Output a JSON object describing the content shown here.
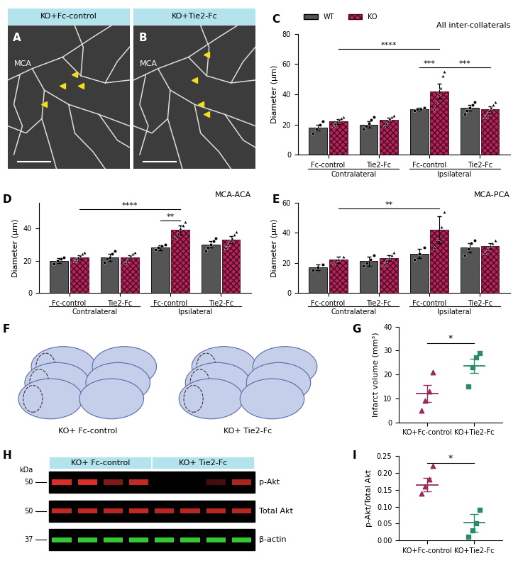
{
  "images": [
    {
      "panel": "A",
      "type": "micrograph",
      "header": "KO+Fc-control",
      "label": "MCA"
    },
    {
      "panel": "B",
      "type": "micrograph",
      "header": "KO+Tie2-Fc",
      "label": "MCA"
    },
    {
      "panel": "F",
      "type": "sections",
      "captions": [
        "KO+ Fc-control",
        "KO+ Tie2-Fc"
      ]
    },
    {
      "panel": "H",
      "type": "blot",
      "groups": [
        "KO+ Fc-control",
        "KO+ Tie2-Fc"
      ],
      "kda_title": "kDa",
      "rows": [
        {
          "label": "p-Akt",
          "kda": "50",
          "color": "#e8302a",
          "intensity": [
            0.95,
            0.95,
            0.55,
            0.85,
            0.0,
            0.0,
            0.3,
            0.75
          ]
        },
        {
          "label": "Total Akt",
          "kda": "50",
          "color": "#e8302a",
          "intensity": [
            0.85,
            0.85,
            0.8,
            0.85,
            0.8,
            0.8,
            0.8,
            0.8
          ]
        },
        {
          "label": "β-actin",
          "kda": "37",
          "color": "#3adf3a",
          "intensity": [
            0.9,
            0.9,
            0.9,
            0.9,
            0.9,
            0.9,
            0.9,
            0.9
          ]
        }
      ]
    }
  ],
  "chart_data": [
    {
      "panel": "C",
      "type": "bar",
      "title": "All inter-collaterals",
      "ylabel": "Diameter (μm)",
      "categories": [
        "Fc-control",
        "Tie2-Fc",
        "Fc-control",
        "Tie2-Fc"
      ],
      "groups": [
        {
          "label": "Contralateral",
          "categories": [
            0,
            1
          ]
        },
        {
          "label": "Ipsilateral",
          "categories": [
            2,
            3
          ]
        }
      ],
      "series": [
        {
          "name": "WT",
          "color": "#555555",
          "marker": "circle",
          "values": [
            18,
            20,
            30,
            31
          ],
          "errors": [
            2,
            2,
            1,
            2
          ],
          "points": [
            [
              14,
              17,
              20,
              22
            ],
            [
              17,
              19,
              21,
              23,
              25
            ],
            [
              29,
              30,
              30,
              31
            ],
            [
              27,
              29,
              31,
              33,
              35
            ]
          ]
        },
        {
          "name": "KO",
          "color": "#b5245a",
          "marker": "triangle",
          "values": [
            22,
            23,
            42,
            30
          ],
          "errors": [
            1.5,
            1.5,
            5,
            2
          ],
          "points": [
            [
              19,
              21,
              22,
              23,
              24,
              25
            ],
            [
              19,
              21,
              22,
              24,
              25,
              26
            ],
            [
              30,
              35,
              40,
              44,
              52,
              55
            ],
            [
              25,
              27,
              29,
              31,
              33,
              35
            ]
          ]
        }
      ],
      "ylim": [
        0,
        80
      ],
      "yticks": [
        0,
        20,
        40,
        60,
        80
      ],
      "legend": "upper left",
      "significance": [
        {
          "from": [
            0,
            "KO"
          ],
          "to": [
            2,
            "KO"
          ],
          "y": 70,
          "label": "****"
        },
        {
          "from": [
            2,
            "WT"
          ],
          "to": [
            2,
            "KO"
          ],
          "y": 58,
          "label": "***"
        },
        {
          "from": [
            2,
            "KO"
          ],
          "to": [
            3,
            "KO"
          ],
          "y": 58,
          "label": "***"
        }
      ]
    },
    {
      "panel": "D",
      "type": "bar",
      "title": "MCA-ACA",
      "ylabel": "Diameter (μm)",
      "categories": [
        "Fc-control",
        "Tie2-Fc",
        "Fc-control",
        "Tie2-Fc"
      ],
      "groups": [
        {
          "label": "Contralateral",
          "categories": [
            0,
            1
          ]
        },
        {
          "label": "Ipsilateral",
          "categories": [
            2,
            3
          ]
        }
      ],
      "series": [
        {
          "name": "WT",
          "color": "#555555",
          "marker": "circle",
          "values": [
            20,
            22,
            28,
            30
          ],
          "errors": [
            1.5,
            2,
            1.5,
            2
          ],
          "points": [
            [
              18,
              20,
              21,
              22
            ],
            [
              19,
              21,
              22,
              24,
              26
            ],
            [
              27,
              28,
              29,
              30
            ],
            [
              26,
              28,
              30,
              32,
              34
            ]
          ]
        },
        {
          "name": "KO",
          "color": "#b5245a",
          "marker": "triangle",
          "values": [
            22,
            22,
            39,
            33
          ],
          "errors": [
            1.5,
            1.5,
            3,
            2
          ],
          "points": [
            [
              20,
              21,
              22,
              23,
              24,
              25
            ],
            [
              19,
              20,
              22,
              23,
              24,
              25
            ],
            [
              34,
              37,
              40,
              42,
              44
            ],
            [
              28,
              30,
              32,
              34,
              36,
              38
            ]
          ]
        }
      ],
      "ylim": [
        0,
        56
      ],
      "yticks": [
        0,
        20,
        40
      ],
      "significance": [
        {
          "from": [
            0,
            "KO"
          ],
          "to": [
            2,
            "KO"
          ],
          "y": 52,
          "label": "****"
        },
        {
          "from": [
            2,
            "WT"
          ],
          "to": [
            2,
            "KO"
          ],
          "y": 45,
          "label": "**"
        }
      ]
    },
    {
      "panel": "E",
      "type": "bar",
      "title": "MCA-PCA",
      "ylabel": "Diameter (μm)",
      "categories": [
        "Fc-control",
        "Tie2-Fc",
        "Fc-control",
        "Tie2-Fc"
      ],
      "groups": [
        {
          "label": "Contralateral",
          "categories": [
            0,
            1
          ]
        },
        {
          "label": "Ipsilateral",
          "categories": [
            2,
            3
          ]
        }
      ],
      "series": [
        {
          "name": "WT",
          "color": "#555555",
          "marker": "circle",
          "values": [
            17,
            21,
            26,
            30
          ],
          "errors": [
            2,
            3,
            3,
            3
          ],
          "points": [
            [
              15,
              17,
              19
            ],
            [
              18,
              20,
              22,
              25
            ],
            [
              22,
              26,
              30
            ],
            [
              25,
              29,
              33,
              35
            ]
          ]
        },
        {
          "name": "KO",
          "color": "#b5245a",
          "marker": "triangle",
          "values": [
            22,
            23,
            42,
            31
          ],
          "errors": [
            2,
            2,
            9,
            2
          ],
          "points": [
            [
              20,
              22,
              24
            ],
            [
              19,
              21,
              23,
              25,
              27
            ],
            [
              30,
              36,
              44,
              54
            ],
            [
              27,
              29,
              31,
              33,
              35
            ]
          ]
        }
      ],
      "ylim": [
        0,
        60
      ],
      "yticks": [
        0,
        20,
        40,
        60
      ],
      "significance": [
        {
          "from": [
            0,
            "KO"
          ],
          "to": [
            2,
            "KO"
          ],
          "y": 56,
          "label": "**"
        }
      ]
    },
    {
      "panel": "G",
      "type": "dot",
      "ylabel": "Infarct volume (mm³)",
      "categories": [
        "KO+Fc-control",
        "KO+Tie2-Fc"
      ],
      "colors": [
        "#9b2a5a",
        "#2a8a6a"
      ],
      "markers": [
        "triangle",
        "square"
      ],
      "points": [
        [
          5,
          9,
          13,
          21
        ],
        [
          15,
          23,
          27,
          29
        ]
      ],
      "means": [
        12,
        23.5
      ],
      "errors": [
        3.5,
        3
      ],
      "ylim": [
        0,
        40
      ],
      "yticks": [
        0,
        10,
        20,
        30,
        40
      ],
      "significance": [
        {
          "from": 0,
          "to": 1,
          "y": 33,
          "label": "*"
        }
      ]
    },
    {
      "panel": "I",
      "type": "dot",
      "ylabel": "p-Akt/Total Akt",
      "categories": [
        "KO+Fc-control",
        "KO+Tie2-Fc"
      ],
      "colors": [
        "#9b2a5a",
        "#2a8a6a"
      ],
      "markers": [
        "triangle",
        "square"
      ],
      "points": [
        [
          0.14,
          0.16,
          0.18,
          0.22
        ],
        [
          0.01,
          0.03,
          0.05,
          0.09
        ]
      ],
      "means": [
        0.165,
        0.052
      ],
      "errors": [
        0.02,
        0.027
      ],
      "ylim": [
        0,
        0.25
      ],
      "yticks": [
        {
          "value": 0,
          "label": "0.00"
        },
        {
          "value": 0.05,
          "label": "0.05"
        },
        {
          "value": 0.1,
          "label": "0.10"
        },
        {
          "value": 0.15,
          "label": "0.15"
        },
        {
          "value": 0.2,
          "label": "0.20"
        },
        {
          "value": 0.25,
          "label": "0.25"
        }
      ],
      "significance": [
        {
          "from": 0,
          "to": 1,
          "y": 0.23,
          "label": "*"
        }
      ]
    }
  ]
}
